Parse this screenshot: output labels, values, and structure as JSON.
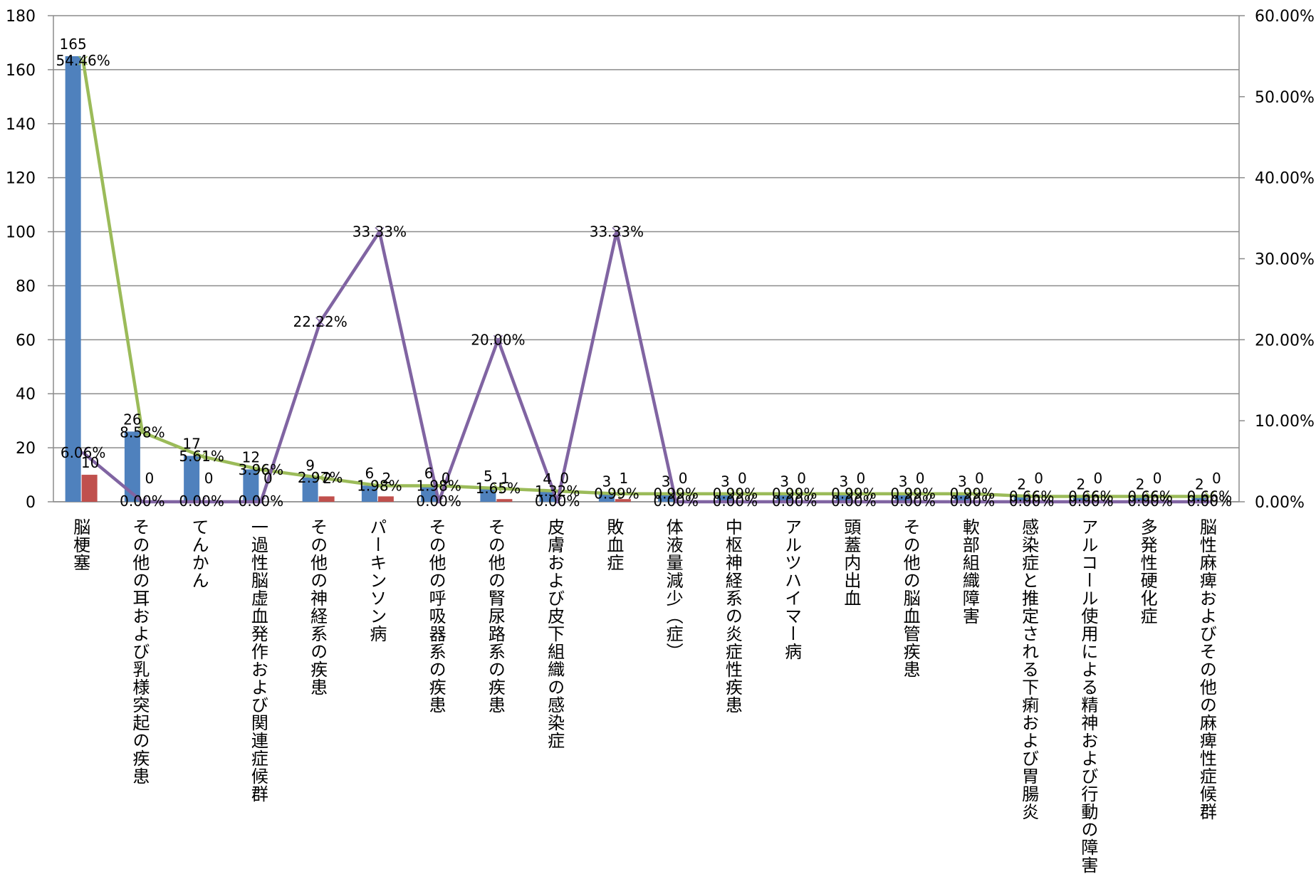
{
  "chart_data": {
    "type": "bar",
    "categories": [
      "脳梗塞",
      "その他の耳および乳様突起の疾患",
      "てんかん",
      "一過性脳虚血発作および関連症候群",
      "その他の神経系の疾患",
      "パーキンソン病",
      "その他の呼吸器系の疾患",
      "その他の腎尿路系の疾患",
      "皮膚および皮下組織の感染症",
      "敗血症",
      "体液量減少（症）",
      "中枢神経系の炎症性疾患",
      "アルツハイマー病",
      "頭蓋内出血",
      "その他の脳血管疾患",
      "軟部組織障害",
      "感染症と推定される下痢および胃腸炎",
      "アルコール使用による精神および行動の障害",
      "多発性硬化症",
      "脳性麻痺およびその他の麻痺性症候群"
    ],
    "series": [
      {
        "values": [
          165,
          26,
          17,
          12,
          9,
          6,
          6,
          5,
          4,
          3,
          3,
          3,
          3,
          3,
          3,
          3,
          2,
          2,
          2,
          2
        ],
        "color": "#4f81bd",
        "axis": "left",
        "kind": "bar"
      },
      {
        "values": [
          10,
          0,
          0,
          0,
          2,
          2,
          0,
          1,
          0,
          1,
          0,
          0,
          0,
          0,
          0,
          0,
          0,
          0,
          0,
          0
        ],
        "color": "#c0504d",
        "axis": "left",
        "kind": "bar"
      },
      {
        "values": [
          54.46,
          8.58,
          5.61,
          3.96,
          2.97,
          1.98,
          1.98,
          1.65,
          1.32,
          0.99,
          0.99,
          0.99,
          0.99,
          0.99,
          0.99,
          0.99,
          0.66,
          0.66,
          0.66,
          0.66
        ],
        "color": "#9bbb59",
        "axis": "right",
        "kind": "line"
      },
      {
        "values": [
          6.06,
          0,
          0,
          0,
          22.22,
          33.33,
          0,
          20.0,
          0,
          33.33,
          0,
          0,
          0,
          0,
          0,
          0,
          0,
          0,
          0,
          0
        ],
        "color": "#8064a2",
        "axis": "right",
        "kind": "line"
      }
    ],
    "y_left": {
      "min": 0,
      "max": 180,
      "ticks": [
        0,
        20,
        40,
        60,
        80,
        100,
        120,
        140,
        160,
        180
      ]
    },
    "y_right": {
      "min": 0,
      "max": 60,
      "ticks": [
        "0.00%",
        "10.00%",
        "20.00%",
        "30.00%",
        "40.00%",
        "50.00%",
        "60.00%"
      ]
    },
    "grid": true,
    "legend": "none",
    "data_labels": true
  }
}
